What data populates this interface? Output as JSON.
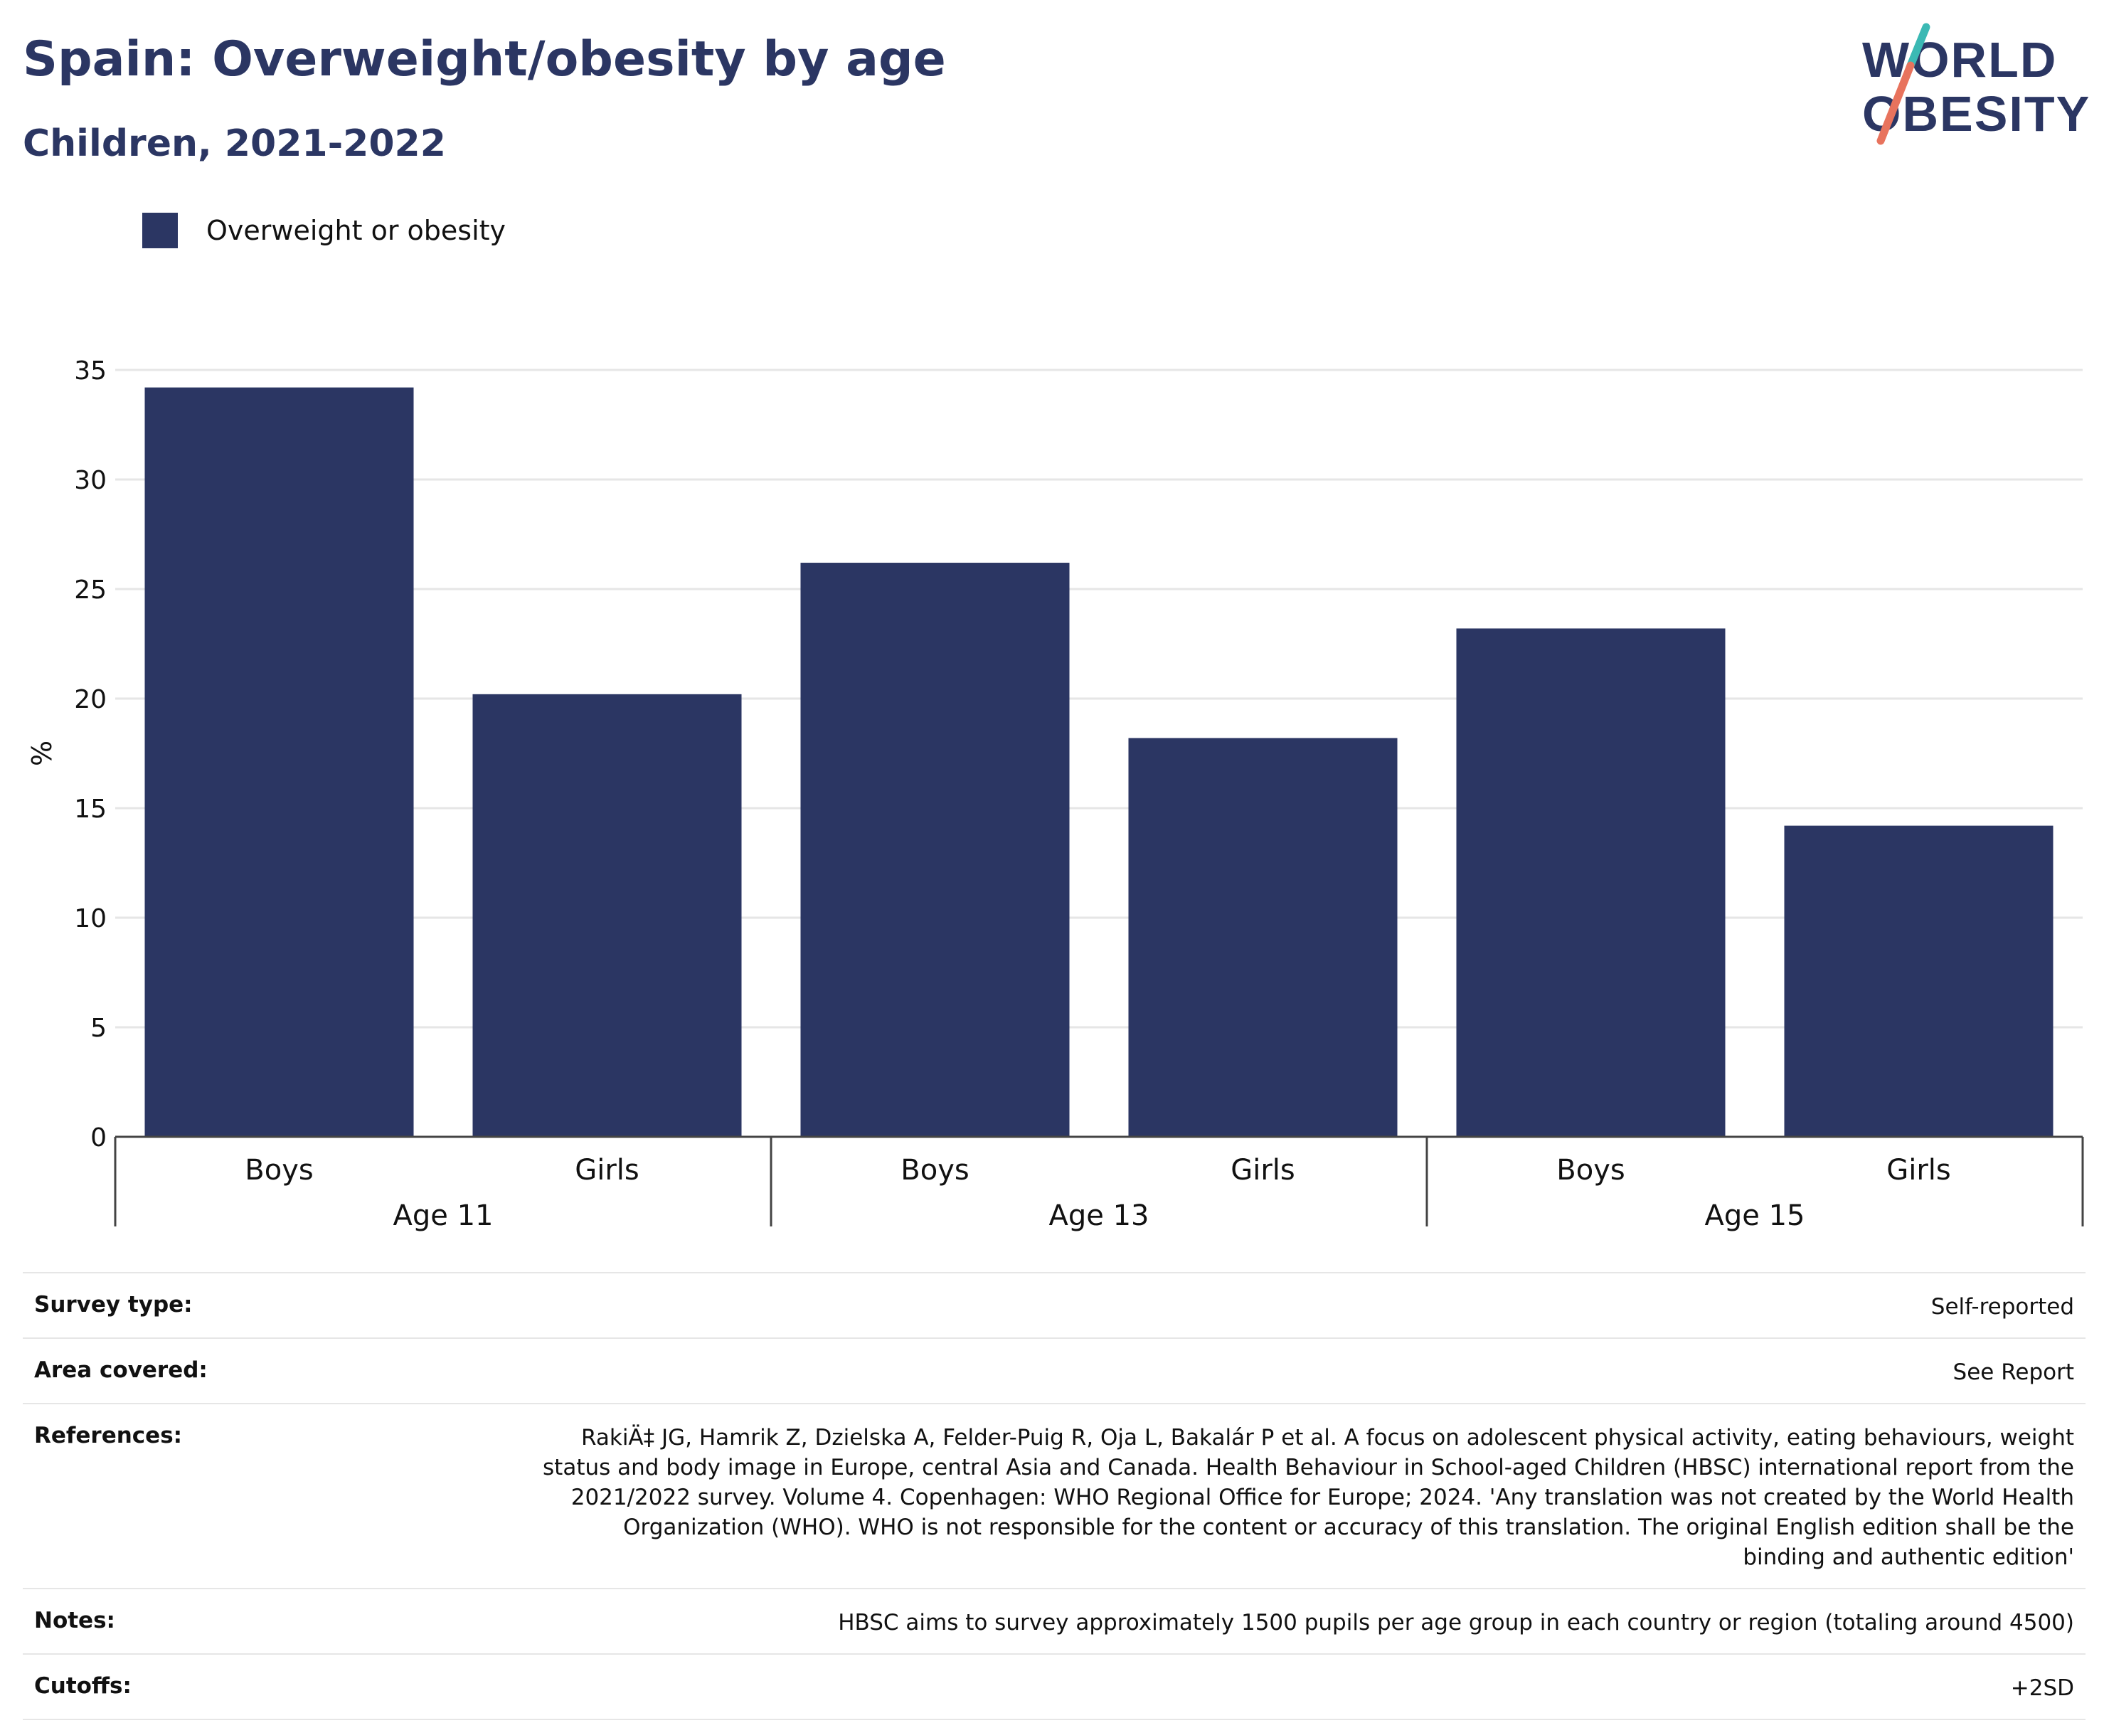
{
  "title": "Spain: Overweight/obesity by age",
  "subtitle": "Children, 2021-2022",
  "logo": {
    "line1": "WORLD",
    "line2": "OBESITY",
    "navy": "#2b3663",
    "teal": "#3bb9b4",
    "coral": "#e8735d"
  },
  "legend": {
    "label": "Overweight or obesity",
    "color": "#2b3663"
  },
  "chart_data": {
    "type": "bar",
    "ylabel": "%",
    "ylim": [
      0,
      35
    ],
    "yticks": [
      0,
      5,
      10,
      15,
      20,
      25,
      30,
      35
    ],
    "grid": true,
    "legend_position": "top-left",
    "bar_color": "#2b3663",
    "groups": [
      {
        "label": "Age 11",
        "bars": [
          {
            "label": "Boys",
            "value": 34.2
          },
          {
            "label": "Girls",
            "value": 20.2
          }
        ]
      },
      {
        "label": "Age 13",
        "bars": [
          {
            "label": "Boys",
            "value": 26.2
          },
          {
            "label": "Girls",
            "value": 18.2
          }
        ]
      },
      {
        "label": "Age 15",
        "bars": [
          {
            "label": "Boys",
            "value": 23.2
          },
          {
            "label": "Girls",
            "value": 14.2
          }
        ]
      }
    ]
  },
  "meta": [
    {
      "key": "Survey type:",
      "value": "Self-reported"
    },
    {
      "key": "Area covered:",
      "value": "See Report"
    },
    {
      "key": "References:",
      "value": "RakiÄ‡ JG, Hamrik Z, Dzielska A, Felder-Puig R, Oja L, Bakalár P et al. A focus on adolescent physical activity, eating behaviours, weight status and body image in Europe, central Asia and Canada. Health Behaviour in School-aged Children (HBSC) international report from the 2021/2022 survey. Volume 4. Copenhagen: WHO Regional Office for Europe; 2024. 'Any translation was not created by the World Health Organization (WHO). WHO is not responsible for the content or accuracy of this translation. The original English edition shall be the binding and authentic edition'"
    },
    {
      "key": "Notes:",
      "value": "HBSC aims to survey approximately 1500 pupils per age group in each country or region (totaling around 4500)"
    },
    {
      "key": "Cutoffs:",
      "value": "+2SD"
    }
  ]
}
